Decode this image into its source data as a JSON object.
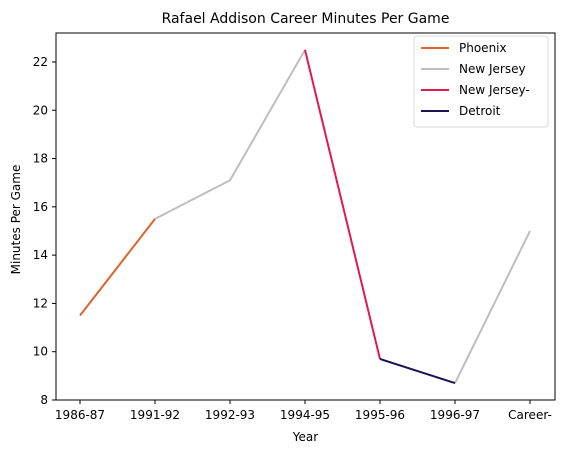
{
  "chart_data": {
    "type": "line",
    "title": "Rafael Addison Career Minutes Per Game",
    "xlabel": "Year",
    "ylabel": "Minutes Per Game",
    "categories": [
      "1986-87",
      "1991-92",
      "1992-93",
      "1994-95",
      "1995-96",
      "1996-97",
      "Career-"
    ],
    "ylim": [
      8,
      23.2
    ],
    "yticks": [
      8,
      10,
      12,
      14,
      16,
      18,
      20,
      22
    ],
    "grid": false,
    "legend_position": "top-right",
    "series": [
      {
        "name": "Phoenix",
        "color": "#e0622b",
        "points": [
          {
            "x": "1986-87",
            "y": 11.5
          },
          {
            "x": "1991-92",
            "y": 15.5
          }
        ]
      },
      {
        "name": "New Jersey",
        "color": "#bebebe",
        "points": [
          {
            "x": "1991-92",
            "y": 15.5
          },
          {
            "x": "1992-93",
            "y": 17.1
          },
          {
            "x": "1994-95",
            "y": 22.5
          }
        ]
      },
      {
        "name": "New Jersey",
        "color": "#bebebe",
        "points": [
          {
            "x": "1996-97",
            "y": 8.7
          },
          {
            "x": "Career-",
            "y": 15.0
          }
        ]
      },
      {
        "name": "New Jersey-",
        "color": "#e0194f",
        "points": [
          {
            "x": "1994-95",
            "y": 22.5
          },
          {
            "x": "1995-96",
            "y": 9.7
          }
        ]
      },
      {
        "name": "Detroit",
        "color": "#1b1452",
        "points": [
          {
            "x": "1995-96",
            "y": 9.7
          },
          {
            "x": "1996-97",
            "y": 8.7
          }
        ]
      }
    ],
    "legend": [
      {
        "label": "Phoenix",
        "color": "#e0622b"
      },
      {
        "label": "New Jersey",
        "color": "#bebebe"
      },
      {
        "label": "New Jersey-",
        "color": "#e0194f"
      },
      {
        "label": "Detroit",
        "color": "#1b1452"
      }
    ]
  }
}
